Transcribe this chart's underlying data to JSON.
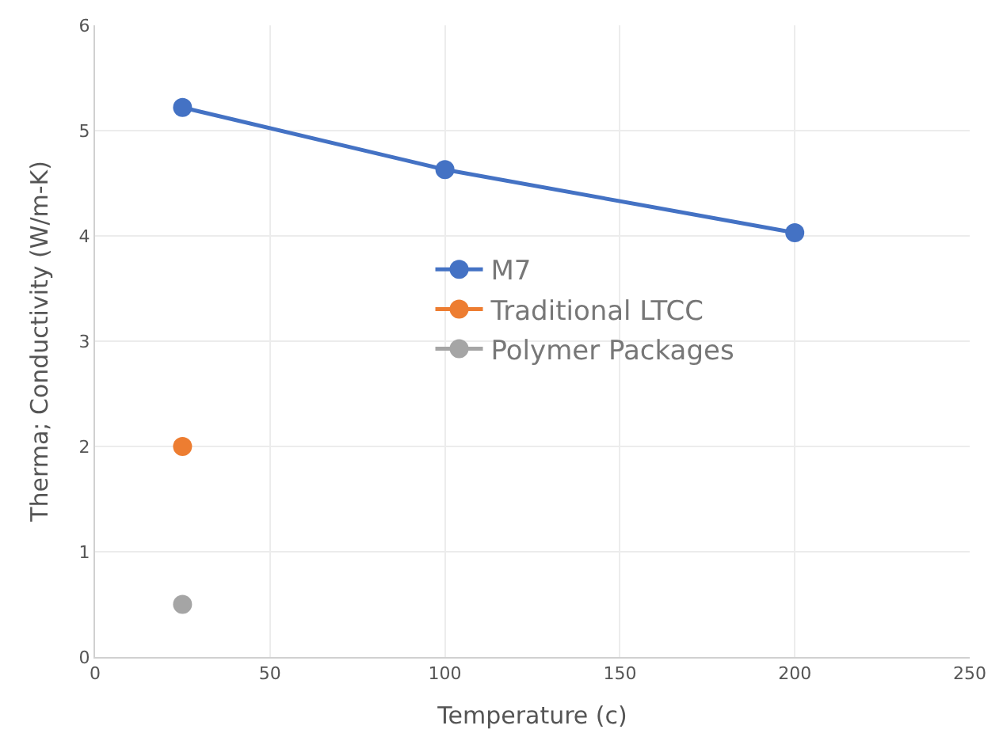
{
  "chart_data": {
    "type": "line",
    "xlabel": "Temperature (c)",
    "ylabel": "Therma; Conductivity (W/m-K)",
    "xlim": [
      0,
      250
    ],
    "xticks": [
      0,
      50,
      100,
      150,
      200,
      250
    ],
    "ylim": [
      0,
      6
    ],
    "yticks": [
      0,
      1,
      2,
      3,
      4,
      5,
      6
    ],
    "grid": true,
    "legend": "center",
    "marker": "circle",
    "line_style": "solid",
    "series": [
      {
        "name": "M7",
        "color": "#4472c4",
        "x": [
          25,
          100,
          200
        ],
        "values": [
          5.22,
          4.63,
          4.03
        ]
      },
      {
        "name": "Traditional LTCC",
        "color": "#ed7d31",
        "x": [
          25
        ],
        "values": [
          2.0
        ]
      },
      {
        "name": "Polymer Packages",
        "color": "#a5a5a5",
        "x": [
          25
        ],
        "values": [
          0.5
        ]
      }
    ]
  }
}
